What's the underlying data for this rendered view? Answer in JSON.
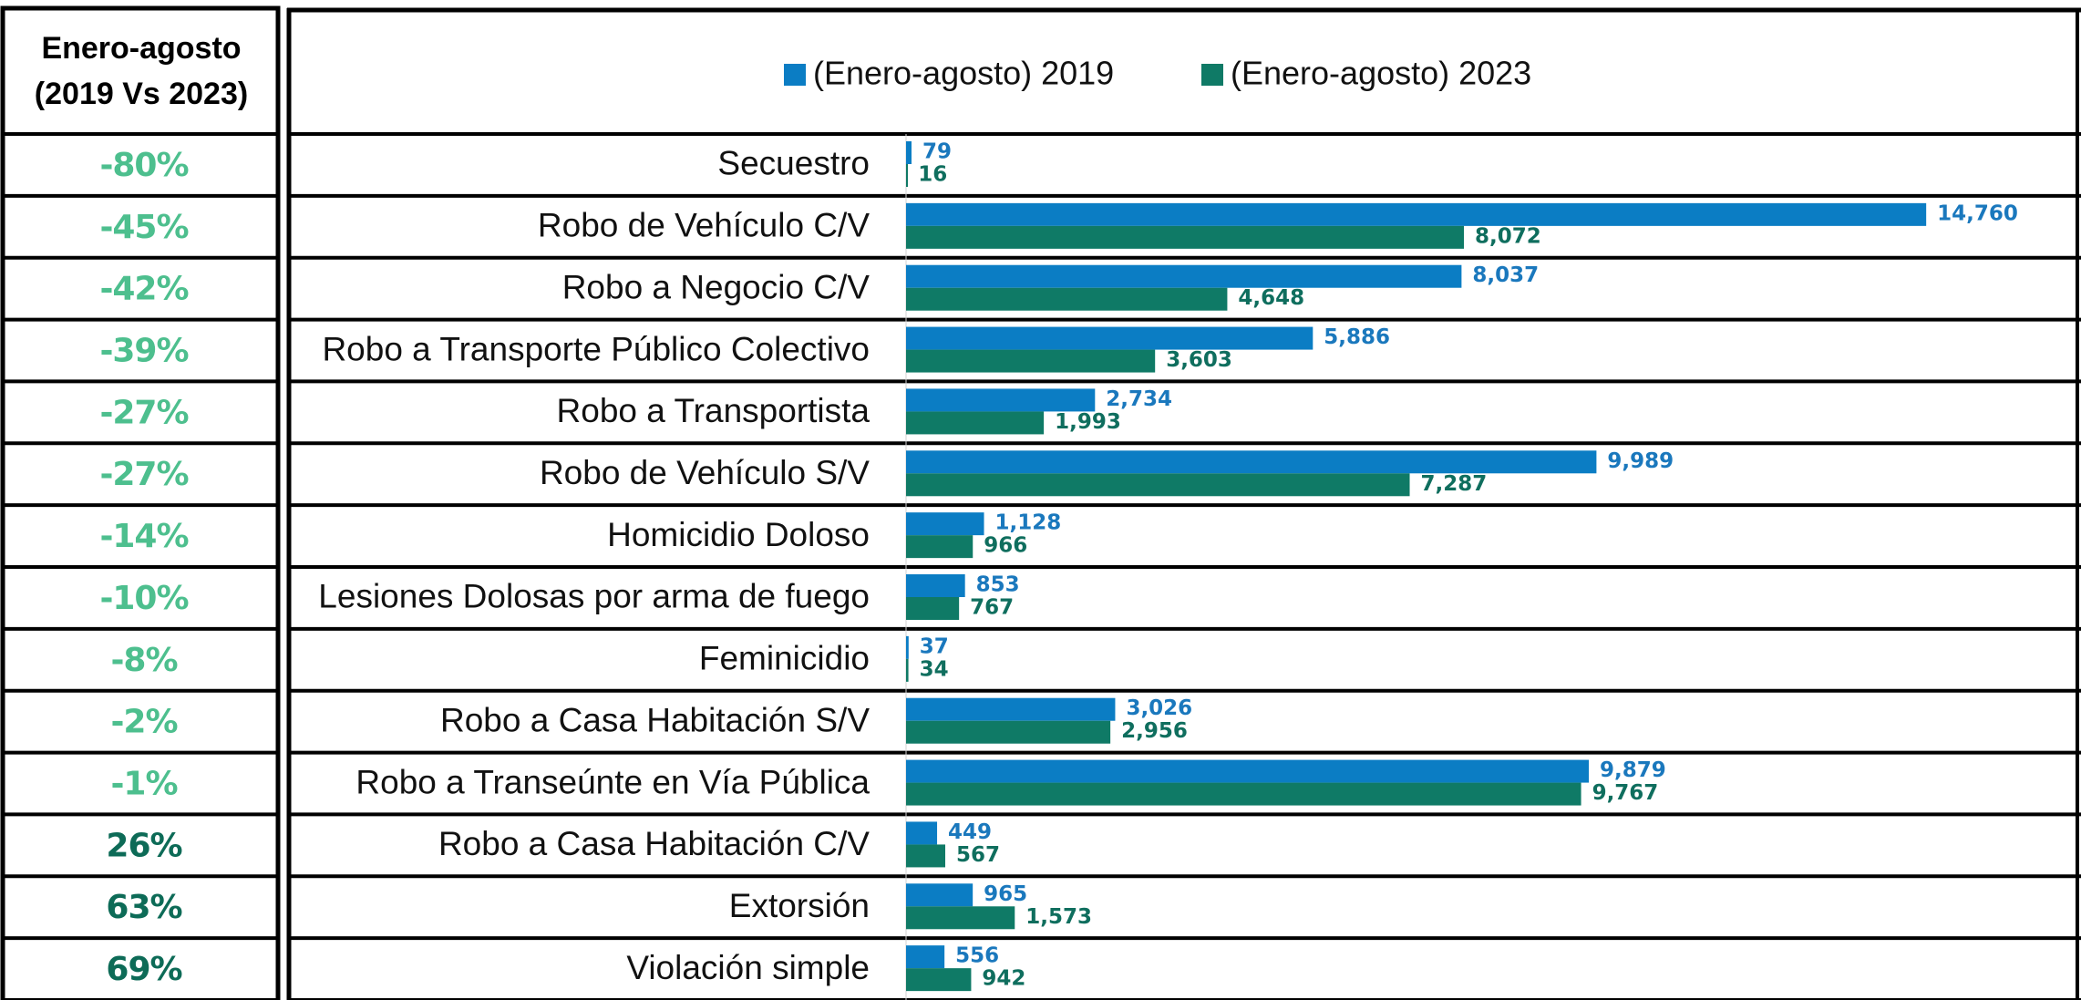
{
  "chart_data": {
    "type": "bar",
    "orientation": "horizontal",
    "header": [
      "Enero-agosto",
      "(2019 Vs 2023)"
    ],
    "categories": [
      "Secuestro",
      "Robo de Vehículo C/V",
      "Robo a Negocio C/V",
      "Robo a Transporte Público Colectivo",
      "Robo a Transportista",
      "Robo de Vehículo S/V",
      "Homicidio Doloso",
      "Lesiones Dolosas por arma de fuego",
      "Feminicidio",
      "Robo a Casa Habitación S/V",
      "Robo a Transeúnte en Vía Pública",
      "Robo a Casa Habitación C/V",
      "Extorsión",
      "Violación simple"
    ],
    "series": [
      {
        "name": "(Enero-agosto) 2019",
        "color": "#0b7dc4",
        "label_color": "#1a78bd",
        "values": [
          79,
          14760,
          8037,
          5886,
          2734,
          9989,
          1128,
          853,
          37,
          3026,
          9879,
          449,
          965,
          556
        ],
        "value_labels": [
          "79",
          "14,760",
          "8,037",
          "5,886",
          "2,734",
          "9,989",
          "1,128",
          "853",
          "37",
          "3,026",
          "9,879",
          "449",
          "965",
          "556"
        ]
      },
      {
        "name": "(Enero-agosto) 2023",
        "color": "#0f7a66",
        "label_color": "#0f6e5e",
        "values": [
          16,
          8072,
          4648,
          3603,
          1993,
          7287,
          966,
          767,
          34,
          2956,
          9767,
          567,
          1573,
          942
        ],
        "value_labels": [
          "16",
          "8,072",
          "4,648",
          "3,603",
          "1,993",
          "7,287",
          "966",
          "767",
          "34",
          "2,956",
          "9,767",
          "567",
          "1,573",
          "942"
        ]
      }
    ],
    "changes": {
      "values": [
        -80,
        -45,
        -42,
        -39,
        -27,
        -27,
        -14,
        -10,
        -8,
        -2,
        -1,
        26,
        63,
        69
      ],
      "value_labels": [
        "-80%",
        "-45%",
        "-42%",
        "-39%",
        "-27%",
        "-27%",
        "-14%",
        "-10%",
        "-8%",
        "-2%",
        "-1%",
        "26%",
        "63%",
        "69%"
      ],
      "negative_color": "#4dbf8e",
      "positive_color": "#0d6b57"
    },
    "xlim": [
      0,
      17000
    ],
    "legend": "top"
  }
}
